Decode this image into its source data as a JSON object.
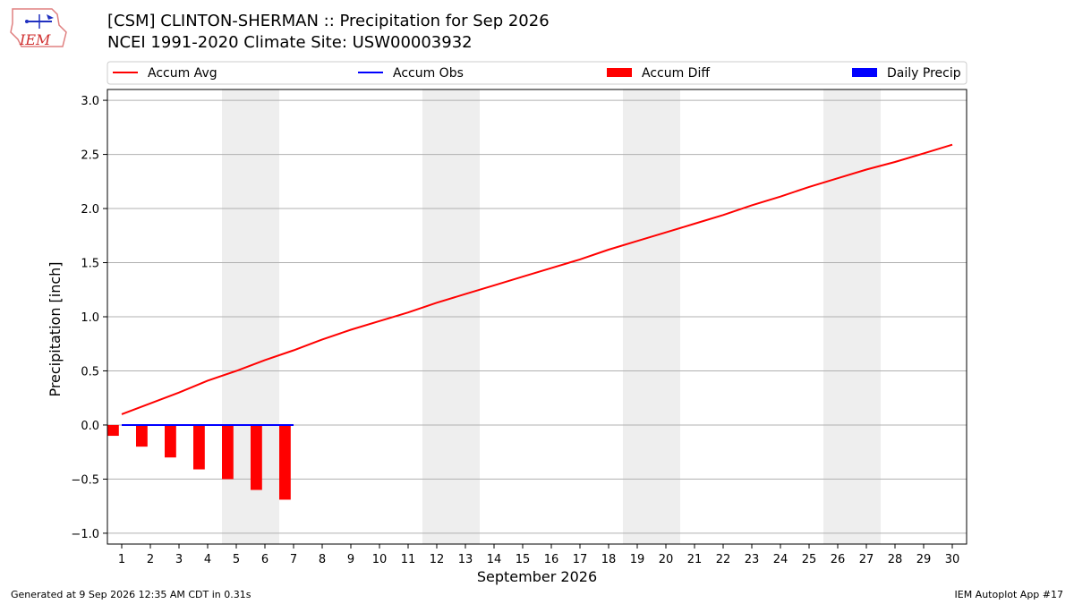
{
  "header": {
    "title_line1": "[CSM] CLINTON-SHERMAN :: Precipitation for Sep 2026",
    "title_line2": "NCEI 1991-2020 Climate Site: USW00003932"
  },
  "logo": {
    "text": "IEM"
  },
  "footer": {
    "left": "Generated at 9 Sep 2026 12:35 AM CDT in 0.31s",
    "right": "IEM Autoplot App #17"
  },
  "colors": {
    "accum_avg": "#ff0000",
    "accum_obs": "#0000ff",
    "accum_diff": "#ff0000",
    "daily_precip": "#0000ff",
    "weekend_band": "#eeeeee",
    "grid": "#b0b0b0"
  },
  "chart_data": {
    "type": "line",
    "xlabel": "September 2026",
    "ylabel": "Precipitation [inch]",
    "xlim": [
      0.5,
      30.5
    ],
    "ylim": [
      -1.1,
      3.1
    ],
    "yticks": [
      -1.0,
      -0.5,
      0.0,
      0.5,
      1.0,
      1.5,
      2.0,
      2.5,
      3.0
    ],
    "ytick_labels": [
      "−1.0",
      "−0.5",
      "0.0",
      "0.5",
      "1.0",
      "1.5",
      "2.0",
      "2.5",
      "3.0"
    ],
    "x": [
      1,
      2,
      3,
      4,
      5,
      6,
      7,
      8,
      9,
      10,
      11,
      12,
      13,
      14,
      15,
      16,
      17,
      18,
      19,
      20,
      21,
      22,
      23,
      24,
      25,
      26,
      27,
      28,
      29,
      30
    ],
    "xtick_labels": [
      "1",
      "2",
      "3",
      "4",
      "5",
      "6",
      "7",
      "8",
      "9",
      "10",
      "11",
      "12",
      "13",
      "14",
      "15",
      "16",
      "17",
      "18",
      "19",
      "20",
      "21",
      "22",
      "23",
      "24",
      "25",
      "26",
      "27",
      "28",
      "29",
      "30"
    ],
    "weekend_days": [
      5,
      6,
      12,
      13,
      19,
      20,
      26,
      27
    ],
    "grid": "horizontal",
    "legend_position": "top",
    "legend": [
      "Accum Avg",
      "Accum Obs",
      "Accum Diff",
      "Daily Precip"
    ],
    "series": [
      {
        "name": "Accum Avg",
        "kind": "line",
        "x": [
          1,
          2,
          3,
          4,
          5,
          6,
          7,
          8,
          9,
          10,
          11,
          12,
          13,
          14,
          15,
          16,
          17,
          18,
          19,
          20,
          21,
          22,
          23,
          24,
          25,
          26,
          27,
          28,
          29,
          30
        ],
        "values": [
          0.1,
          0.2,
          0.3,
          0.41,
          0.5,
          0.6,
          0.69,
          0.79,
          0.88,
          0.96,
          1.04,
          1.13,
          1.21,
          1.29,
          1.37,
          1.45,
          1.53,
          1.62,
          1.7,
          1.78,
          1.86,
          1.94,
          2.03,
          2.11,
          2.2,
          2.28,
          2.36,
          2.43,
          2.51,
          2.59
        ]
      },
      {
        "name": "Accum Obs",
        "kind": "line",
        "x": [
          1,
          2,
          3,
          4,
          5,
          6,
          7
        ],
        "values": [
          0,
          0,
          0,
          0,
          0,
          0,
          0
        ]
      },
      {
        "name": "Accum Diff",
        "kind": "bar",
        "x": [
          1,
          2,
          3,
          4,
          5,
          6,
          7
        ],
        "values": [
          -0.1,
          -0.2,
          -0.3,
          -0.41,
          -0.5,
          -0.6,
          -0.69
        ]
      },
      {
        "name": "Daily Precip",
        "kind": "bar",
        "x": [
          1,
          2,
          3,
          4,
          5,
          6,
          7
        ],
        "values": [
          0,
          0,
          0,
          0,
          0,
          0,
          0
        ]
      }
    ]
  }
}
